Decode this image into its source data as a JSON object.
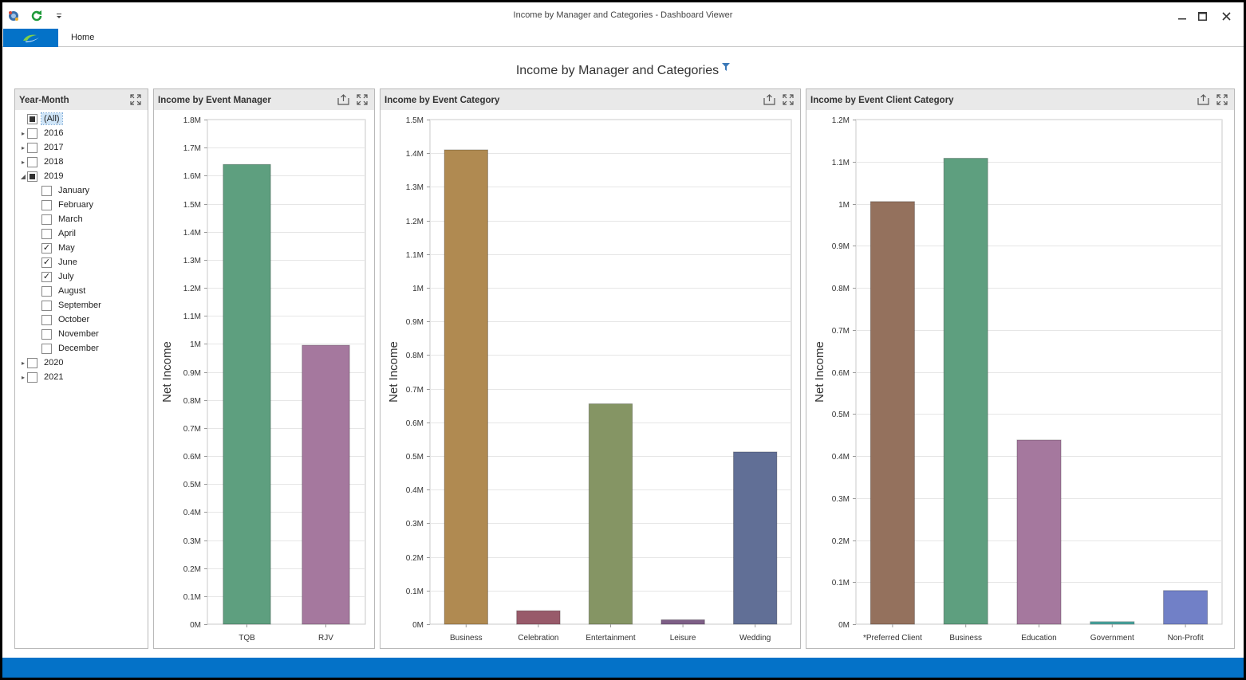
{
  "window": {
    "title": "Income by Manager and Categories - Dashboard Viewer",
    "minimize_icon": "minimize-icon",
    "maximize_icon": "maximize-icon",
    "close_icon": "close-icon"
  },
  "quick_access": [
    "app-logo-icon",
    "refresh-icon",
    "customize-dropdown-icon"
  ],
  "ribbon": {
    "tabs": [
      {
        "label": "Home"
      }
    ]
  },
  "dashboard": {
    "title": "Income by Manager and Categories"
  },
  "colors": {
    "accent": "#0472c8",
    "panel_header": "#e9e9e9"
  },
  "year_month_filter": {
    "title": "Year-Month",
    "items": [
      {
        "label": "(All)",
        "level": 0,
        "expander": "",
        "state": "partial",
        "selected": true
      },
      {
        "label": "2016",
        "level": 0,
        "expander": "collapsed",
        "state": "unchecked"
      },
      {
        "label": "2017",
        "level": 0,
        "expander": "collapsed",
        "state": "unchecked"
      },
      {
        "label": "2018",
        "level": 0,
        "expander": "collapsed",
        "state": "unchecked"
      },
      {
        "label": "2019",
        "level": 0,
        "expander": "expanded",
        "state": "partial"
      },
      {
        "label": "January",
        "level": 1,
        "expander": "",
        "state": "unchecked"
      },
      {
        "label": "February",
        "level": 1,
        "expander": "",
        "state": "unchecked"
      },
      {
        "label": "March",
        "level": 1,
        "expander": "",
        "state": "unchecked"
      },
      {
        "label": "April",
        "level": 1,
        "expander": "",
        "state": "unchecked"
      },
      {
        "label": "May",
        "level": 1,
        "expander": "",
        "state": "checked"
      },
      {
        "label": "June",
        "level": 1,
        "expander": "",
        "state": "checked"
      },
      {
        "label": "July",
        "level": 1,
        "expander": "",
        "state": "checked"
      },
      {
        "label": "August",
        "level": 1,
        "expander": "",
        "state": "unchecked"
      },
      {
        "label": "September",
        "level": 1,
        "expander": "",
        "state": "unchecked"
      },
      {
        "label": "October",
        "level": 1,
        "expander": "",
        "state": "unchecked"
      },
      {
        "label": "November",
        "level": 1,
        "expander": "",
        "state": "unchecked"
      },
      {
        "label": "December",
        "level": 1,
        "expander": "",
        "state": "unchecked"
      },
      {
        "label": "2020",
        "level": 0,
        "expander": "collapsed",
        "state": "unchecked"
      },
      {
        "label": "2021",
        "level": 0,
        "expander": "collapsed",
        "state": "unchecked"
      }
    ]
  },
  "chart_data": [
    {
      "type": "bar",
      "title": "Income by Event Manager",
      "ylabel": "Net Income",
      "xlabel": "",
      "ylim": [
        0,
        1800000
      ],
      "ytick_step": 100000,
      "ytick_labels": [
        "0M",
        "0.1M",
        "0.2M",
        "0.3M",
        "0.4M",
        "0.5M",
        "0.6M",
        "0.7M",
        "0.8M",
        "0.9M",
        "1M",
        "1.1M",
        "1.2M",
        "1.3M",
        "1.4M",
        "1.5M",
        "1.6M",
        "1.7M",
        "1.8M"
      ],
      "categories": [
        "TQB",
        "RJV"
      ],
      "values": [
        1640000,
        995000
      ],
      "colors": [
        "#5e9f7f",
        "#a5789e"
      ],
      "grid": true
    },
    {
      "type": "bar",
      "title": "Income by Event Category",
      "ylabel": "Net Income",
      "xlabel": "",
      "ylim": [
        0,
        1500000
      ],
      "ytick_step": 100000,
      "ytick_labels": [
        "0M",
        "0.1M",
        "0.2M",
        "0.3M",
        "0.4M",
        "0.5M",
        "0.6M",
        "0.7M",
        "0.8M",
        "0.9M",
        "1M",
        "1.1M",
        "1.2M",
        "1.3M",
        "1.4M",
        "1.5M"
      ],
      "categories": [
        "Business",
        "Celebration",
        "Entertainment",
        "Leisure",
        "Wedding"
      ],
      "values": [
        1410000,
        40000,
        655000,
        13000,
        512000
      ],
      "colors": [
        "#b08a51",
        "#985a6a",
        "#859564",
        "#7d5e86",
        "#616f96"
      ],
      "grid": true
    },
    {
      "type": "bar",
      "title": "Income by Event Client Category",
      "ylabel": "Net Income",
      "xlabel": "",
      "ylim": [
        0,
        1200000
      ],
      "ytick_step": 100000,
      "ytick_labels": [
        "0M",
        "0.1M",
        "0.2M",
        "0.3M",
        "0.4M",
        "0.5M",
        "0.6M",
        "0.7M",
        "0.8M",
        "0.9M",
        "1M",
        "1.1M",
        "1.2M"
      ],
      "categories": [
        "*Preferred Client",
        "Business",
        "Education",
        "Government",
        "Non-Profit"
      ],
      "values": [
        1005000,
        1108000,
        438000,
        6000,
        80000
      ],
      "colors": [
        "#94715d",
        "#5e9f7f",
        "#a5789e",
        "#4ba6a0",
        "#7180c7"
      ],
      "grid": true
    }
  ]
}
